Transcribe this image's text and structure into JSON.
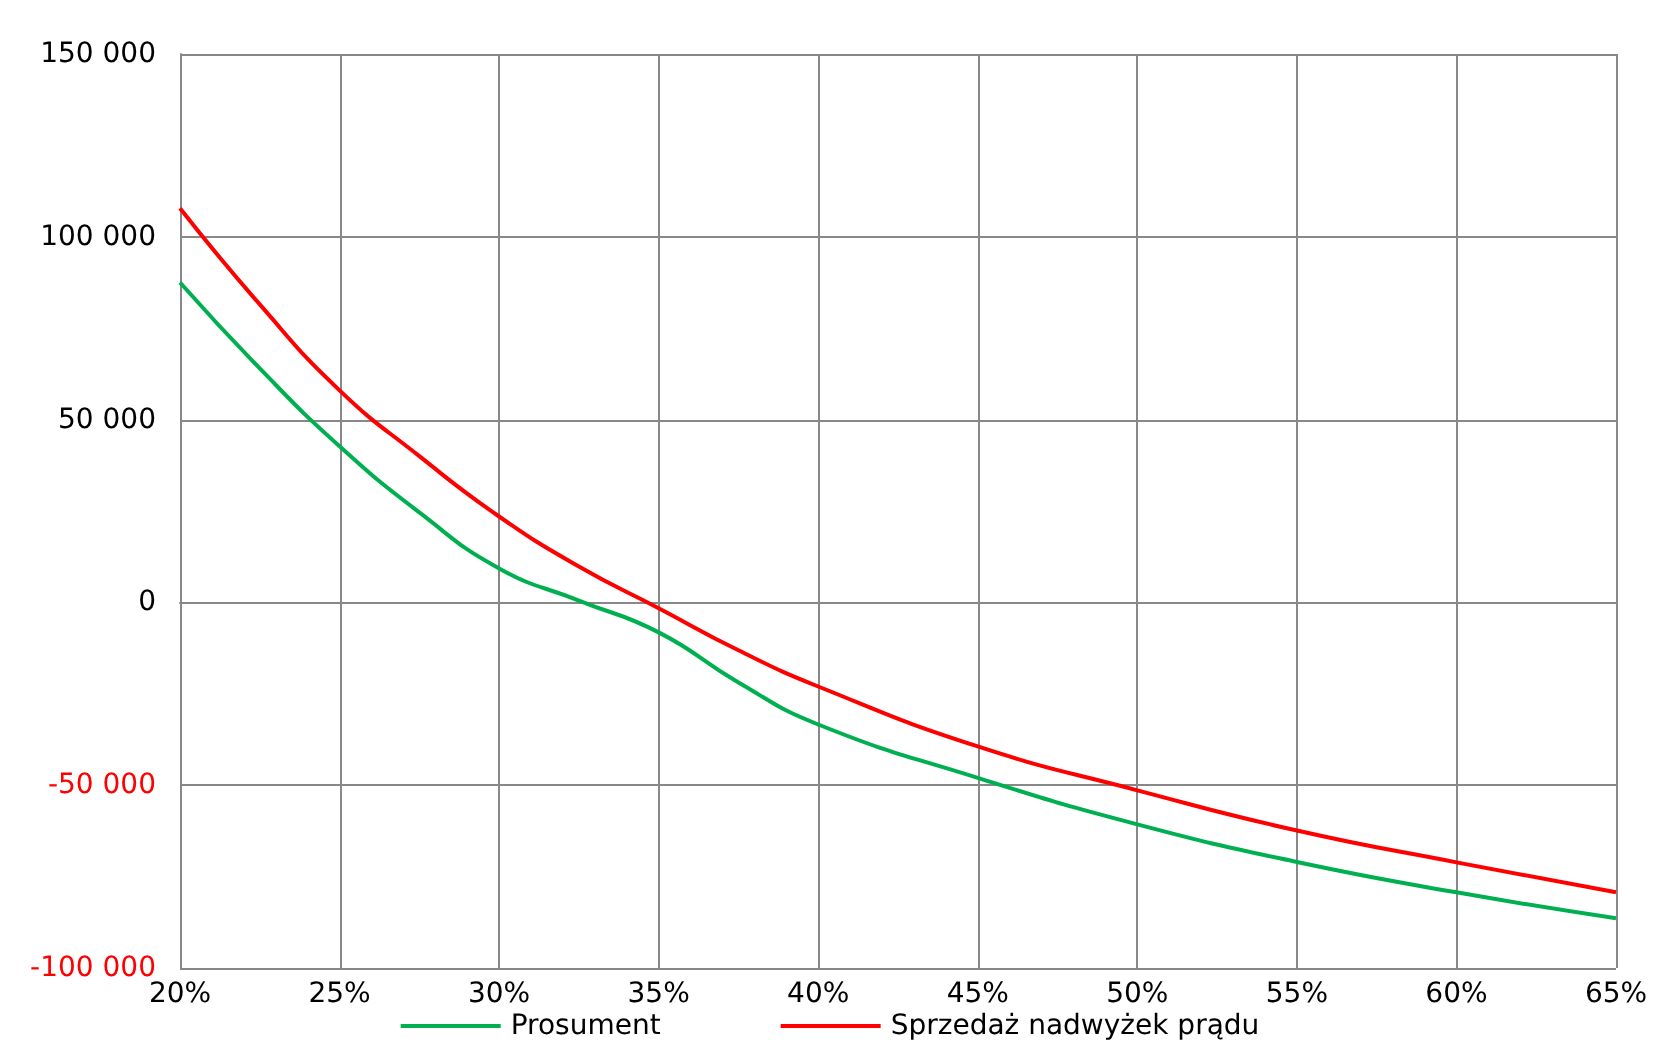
{
  "chart_data": {
    "type": "line",
    "x": [
      20,
      22.5,
      25,
      27.5,
      30,
      32.5,
      35,
      37.5,
      40,
      45,
      50,
      55,
      60,
      65
    ],
    "series": [
      {
        "name": "Prosument",
        "color": "#00b050",
        "values": [
          87500,
          64000,
          42700,
          24600,
          9300,
          500,
          -8200,
          -21900,
          -33400,
          -48000,
          -60700,
          -71000,
          -79300,
          -86400
        ]
      },
      {
        "name": "Sprzedaż nadwyżek prądu",
        "color": "#ff0000",
        "values": [
          107800,
          81500,
          58000,
          40000,
          23500,
          9800,
          -1600,
          -13100,
          -23000,
          -39400,
          -51400,
          -62400,
          -71100,
          -79300
        ]
      }
    ],
    "xlim": [
      20,
      65
    ],
    "xticks": [
      {
        "value": 20,
        "label": "20%"
      },
      {
        "value": 25,
        "label": "25%"
      },
      {
        "value": 30,
        "label": "30%"
      },
      {
        "value": 35,
        "label": "35%"
      },
      {
        "value": 40,
        "label": "40%"
      },
      {
        "value": 45,
        "label": "45%"
      },
      {
        "value": 50,
        "label": "50%"
      },
      {
        "value": 55,
        "label": "55%"
      },
      {
        "value": 60,
        "label": "60%"
      },
      {
        "value": 65,
        "label": "65%"
      }
    ],
    "ylim": [
      -100000,
      150000
    ],
    "yticks": [
      {
        "value": -100000,
        "label": "-100 000"
      },
      {
        "value": -50000,
        "label": "-50 000"
      },
      {
        "value": 0,
        "label": "0"
      },
      {
        "value": 50000,
        "label": "50 000"
      },
      {
        "value": 100000,
        "label": "100 000"
      },
      {
        "value": 150000,
        "label": "150 000"
      }
    ],
    "grid": true,
    "legend": "bottom",
    "marker": "none",
    "line_style": "solid"
  }
}
